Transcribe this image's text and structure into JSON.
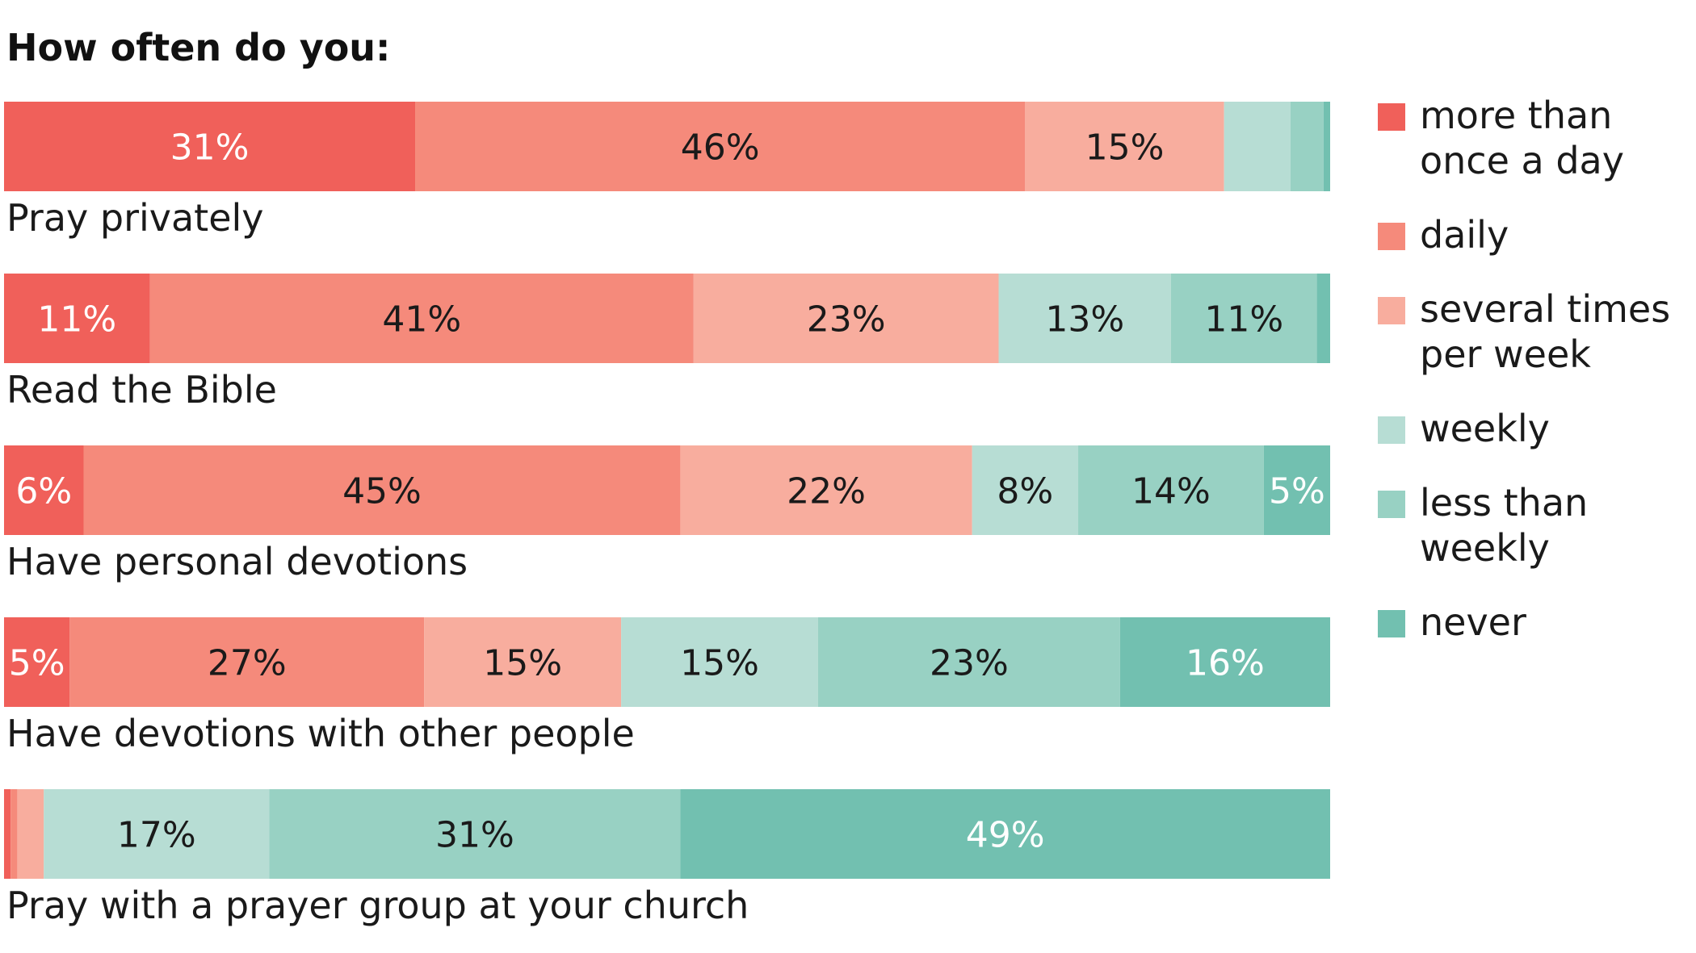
{
  "chart_data": {
    "type": "bar",
    "orientation": "horizontal",
    "stacked": true,
    "title": "How often do you:",
    "xlabel": "",
    "ylabel": "",
    "xlim": [
      0,
      100
    ],
    "grid": false,
    "legend_position": "right",
    "categories": [
      "Pray privately",
      "Read the Bible",
      "Have personal devotions",
      "Have devotions with other people",
      "Pray with a prayer group at your church"
    ],
    "series": [
      {
        "name": "more than once a day",
        "legend_lines": [
          "more than",
          "once a day"
        ],
        "color": "#f0605a",
        "label_color": "#ffffff",
        "values": [
          31,
          11,
          6,
          5,
          0.5
        ]
      },
      {
        "name": "daily",
        "legend_lines": [
          "daily"
        ],
        "color": "#f58a7b",
        "label_color": "#1a1a1a",
        "values": [
          46,
          41,
          45,
          27,
          0.5
        ]
      },
      {
        "name": "several times per week",
        "legend_lines": [
          "several times",
          "per week"
        ],
        "color": "#f8ad9e",
        "label_color": "#1a1a1a",
        "values": [
          15,
          23,
          22,
          15,
          2
        ]
      },
      {
        "name": "weekly",
        "legend_lines": [
          "weekly"
        ],
        "color": "#b7ddd4",
        "label_color": "#1a1a1a",
        "values": [
          5,
          13,
          8,
          15,
          17
        ]
      },
      {
        "name": "less than weekly",
        "legend_lines": [
          "less than",
          "weekly"
        ],
        "color": "#98d1c3",
        "label_color": "#1a1a1a",
        "values": [
          2.5,
          11,
          14,
          23,
          31
        ]
      },
      {
        "name": "never",
        "legend_lines": [
          "never"
        ],
        "color": "#72c0b0",
        "label_color": "#ffffff",
        "values": [
          0.5,
          1,
          5,
          16,
          49
        ]
      }
    ],
    "data_labels": [
      [
        "31%",
        "46%",
        "15%",
        "",
        "",
        ""
      ],
      [
        "11%",
        "41%",
        "23%",
        "13%",
        "11%",
        ""
      ],
      [
        "6%",
        "45%",
        "22%",
        "8%",
        "14%",
        "5%"
      ],
      [
        "5%",
        "27%",
        "15%",
        "15%",
        "23%",
        "16%"
      ],
      [
        "",
        "",
        "",
        "17%",
        "31%",
        "49%"
      ]
    ]
  }
}
